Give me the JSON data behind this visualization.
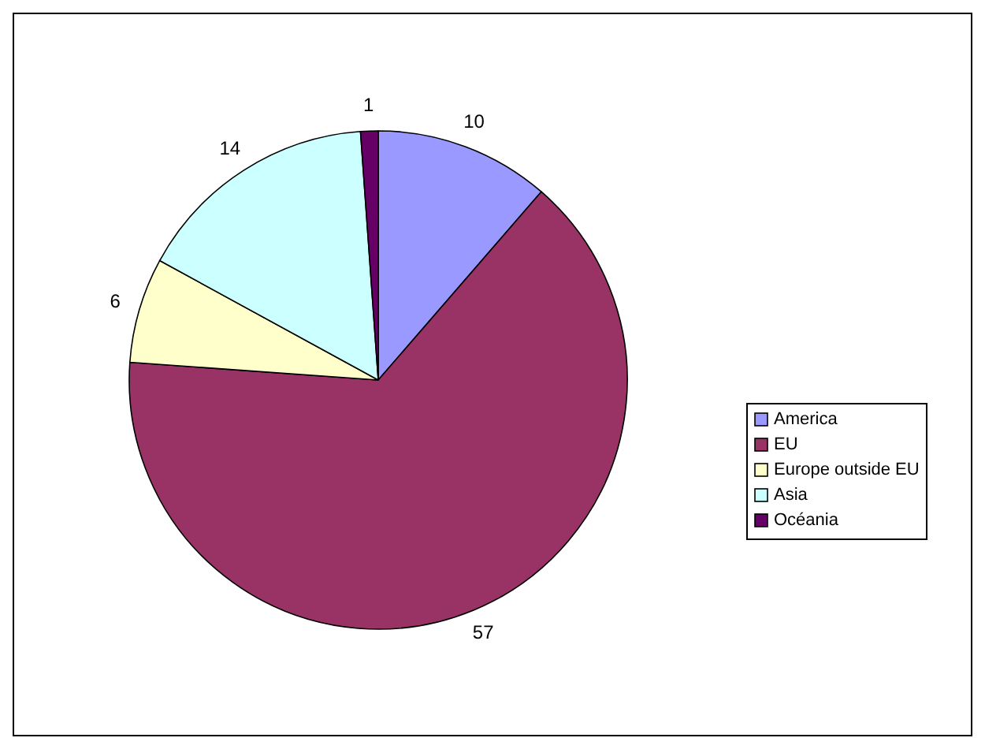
{
  "chart_data": {
    "type": "pie",
    "categories": [
      "America",
      "EU",
      "Europe outside EU",
      "Asia",
      "Océania"
    ],
    "values": [
      10,
      57,
      6,
      14,
      1
    ],
    "colors": [
      "#9999ff",
      "#993366",
      "#ffffcc",
      "#ccffff",
      "#660066"
    ],
    "data_labels": true,
    "legend": "right"
  }
}
